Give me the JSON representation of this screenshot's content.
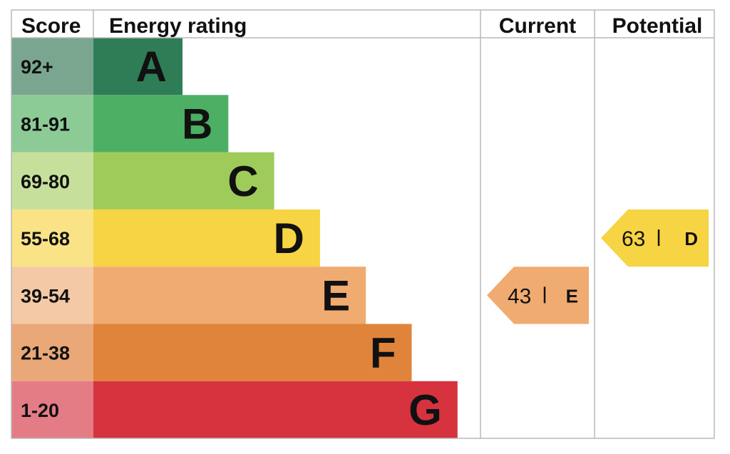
{
  "chart_data": {
    "type": "table",
    "headers": {
      "score": "Score",
      "rating": "Energy rating",
      "current": "Current",
      "potential": "Potential"
    },
    "bands": [
      {
        "score": "92+",
        "letter": "A",
        "color": "#2f7d57",
        "score_color": "#7aa68f"
      },
      {
        "score": "81-91",
        "letter": "B",
        "color": "#4caf63",
        "score_color": "#8ccb96"
      },
      {
        "score": "69-80",
        "letter": "C",
        "color": "#9fcb5a",
        "score_color": "#c6e09c"
      },
      {
        "score": "55-68",
        "letter": "D",
        "color": "#f6d443",
        "score_color": "#f9e386"
      },
      {
        "score": "39-54",
        "letter": "E",
        "color": "#f0ab71",
        "score_color": "#f4c9a5"
      },
      {
        "score": "21-38",
        "letter": "F",
        "color": "#e0843b",
        "score_color": "#eaa878"
      },
      {
        "score": "1-20",
        "letter": "G",
        "color": "#d6333f",
        "score_color": "#e47c86"
      }
    ],
    "current": {
      "value": 43,
      "letter": "E",
      "color": "#f0ab71"
    },
    "potential": {
      "value": 63,
      "letter": "D",
      "color": "#f6d443"
    }
  }
}
